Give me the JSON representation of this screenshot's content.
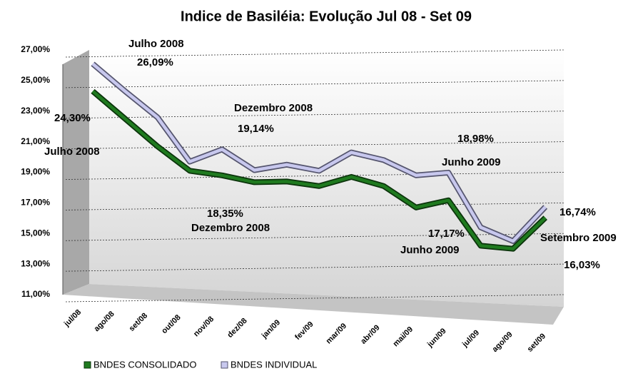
{
  "chart_data": {
    "type": "line",
    "title": "Indice de Basiléia: Evolução Jul 08 - Set 09",
    "categories": [
      "jul/08",
      "ago/08",
      "set/08",
      "out/08",
      "nov/08",
      "dez/08",
      "jan/09",
      "fev/09",
      "mar/09",
      "abr/09",
      "mai/09",
      "jun/09",
      "jul/09",
      "ago/09",
      "set/09"
    ],
    "series": [
      {
        "name": "BNDES CONSOLIDADO",
        "color": "#1f7a1f",
        "values": [
          24.3,
          22.5,
          20.7,
          19.1,
          18.8,
          18.35,
          18.4,
          18.1,
          18.7,
          18.1,
          16.7,
          17.17,
          14.2,
          14.0,
          16.03
        ],
        "value_labels": [
          "24,30%",
          null,
          null,
          null,
          null,
          "18,35%",
          null,
          null,
          null,
          null,
          null,
          "17,17%",
          null,
          null,
          "16,03%"
        ]
      },
      {
        "name": "BNDES INDIVIDUAL",
        "color": "#c8c8ee",
        "values": [
          26.09,
          24.3,
          22.6,
          19.7,
          20.5,
          19.14,
          19.5,
          19.1,
          20.3,
          19.8,
          18.8,
          18.98,
          15.4,
          14.5,
          16.74
        ],
        "value_labels": [
          "26,09%",
          null,
          null,
          null,
          null,
          "19,14%",
          null,
          null,
          null,
          null,
          null,
          "18,98%",
          null,
          null,
          "16,74%"
        ]
      }
    ],
    "annotations": [
      "Julho 2008",
      "Dezembro 2008",
      "Junho 2009",
      "Setembro 2009",
      "Julho 2008",
      "Dezembro 2008",
      "Junho 2009"
    ],
    "ylim": [
      11,
      27
    ],
    "yticks": [
      {
        "value": 11,
        "label": "11,00%"
      },
      {
        "value": 13,
        "label": "13,00%"
      },
      {
        "value": 15,
        "label": "15,00%"
      },
      {
        "value": 17,
        "label": "17,00%"
      },
      {
        "value": 19,
        "label": "19,00%"
      },
      {
        "value": 21,
        "label": "21,00%"
      },
      {
        "value": 23,
        "label": "23,00%"
      },
      {
        "value": 25,
        "label": "25,00%"
      },
      {
        "value": 27,
        "label": "27,00%"
      }
    ],
    "grid": true,
    "legend": "bottom"
  }
}
